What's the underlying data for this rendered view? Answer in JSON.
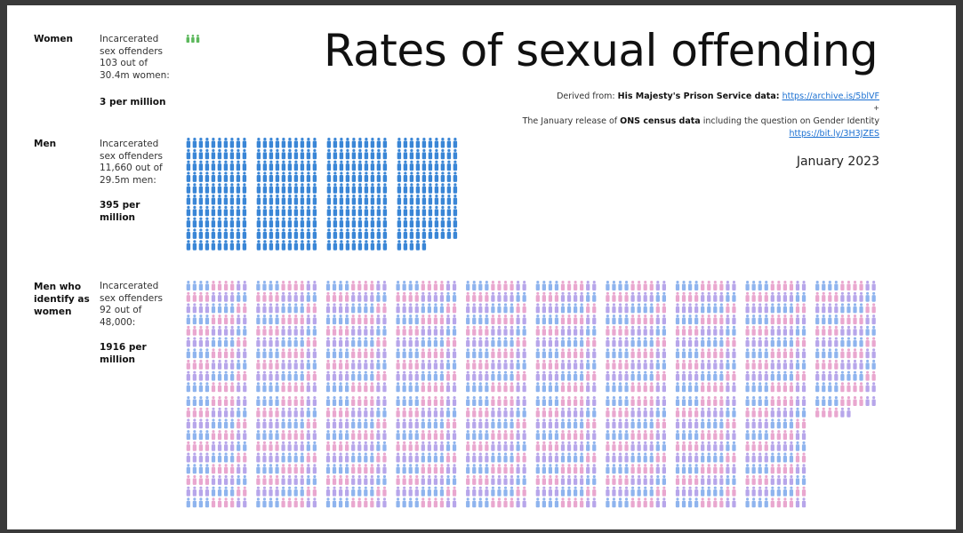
{
  "title": "Rates of sexual offending",
  "source": {
    "derived_prefix": "Derived from:",
    "prison_bold": "His Majesty's Prison Service data:",
    "prison_link": "https://archive.is/5blVF",
    "plus": "+",
    "census_prefix": "The January release of",
    "census_bold": "ONS census data",
    "census_suffix": "including the question on Gender Identity",
    "census_link": "https://bit.ly/3H3JZES"
  },
  "date": "January 2023",
  "groups": {
    "women": {
      "label": "Women",
      "line1": "Incarcerated",
      "line2": "sex offenders",
      "line3": "103 out of",
      "line4": "30.4m women:",
      "rate_line1": "3 per million",
      "rate_line2": ""
    },
    "men": {
      "label": "Men",
      "line1": "Incarcerated",
      "line2": "sex offenders",
      "line3": "11,660 out of",
      "line4": "29.5m men:",
      "rate_line1": "395 per",
      "rate_line2": "million"
    },
    "transwomen": {
      "label_line1": "Men who",
      "label_line2": "identify as",
      "label_line3": "women",
      "line1": "Incarcerated",
      "line2": "sex offenders",
      "line3": "92 out of",
      "line4": "48,000:",
      "rate_line1": "1916 per",
      "rate_line2": "million"
    }
  },
  "chart_data": {
    "type": "pictogram",
    "unit": "1 icon = 1 per million",
    "series": [
      {
        "name": "Women",
        "values": [
          3
        ],
        "color": "#5cb85c"
      },
      {
        "name": "Men",
        "values": [
          395
        ],
        "color": "#3a86d6"
      },
      {
        "name": "Men who identify as women",
        "values": [
          1916
        ],
        "colors": [
          "#8fb4ee",
          "#e9a7cf",
          "#b7a6ea"
        ]
      }
    ]
  }
}
